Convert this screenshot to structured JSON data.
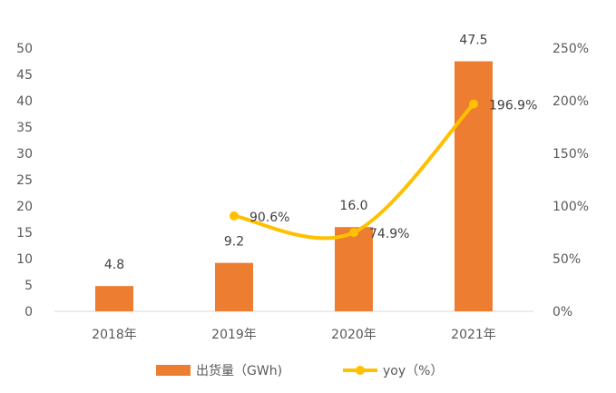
{
  "chart_data": {
    "type": "bar",
    "categories": [
      "2018年",
      "2019年",
      "2020年",
      "2021年"
    ],
    "series": [
      {
        "name": "出货量（GWh)",
        "type": "bar",
        "axis": "left",
        "values": [
          4.8,
          9.2,
          16.0,
          47.5
        ],
        "labels": [
          "4.8",
          "9.2",
          "16.0",
          "47.5"
        ],
        "color": "#ED7D31"
      },
      {
        "name": "yoy（%）",
        "type": "line",
        "axis": "right",
        "values": [
          null,
          90.6,
          74.9,
          196.9
        ],
        "labels": [
          "",
          "90.6%",
          "74.9%",
          "196.9%"
        ],
        "color": "#FFC000"
      }
    ],
    "y_left": {
      "min": 0,
      "max": 50,
      "step": 5,
      "ticks": [
        "0",
        "5",
        "10",
        "15",
        "20",
        "25",
        "30",
        "35",
        "40",
        "45",
        "50"
      ]
    },
    "y_right": {
      "min": 0,
      "max": 250,
      "step": 50,
      "ticks": [
        "0%",
        "50%",
        "100%",
        "150%",
        "200%",
        "250%"
      ]
    },
    "grid": false,
    "legend": "bottom"
  }
}
